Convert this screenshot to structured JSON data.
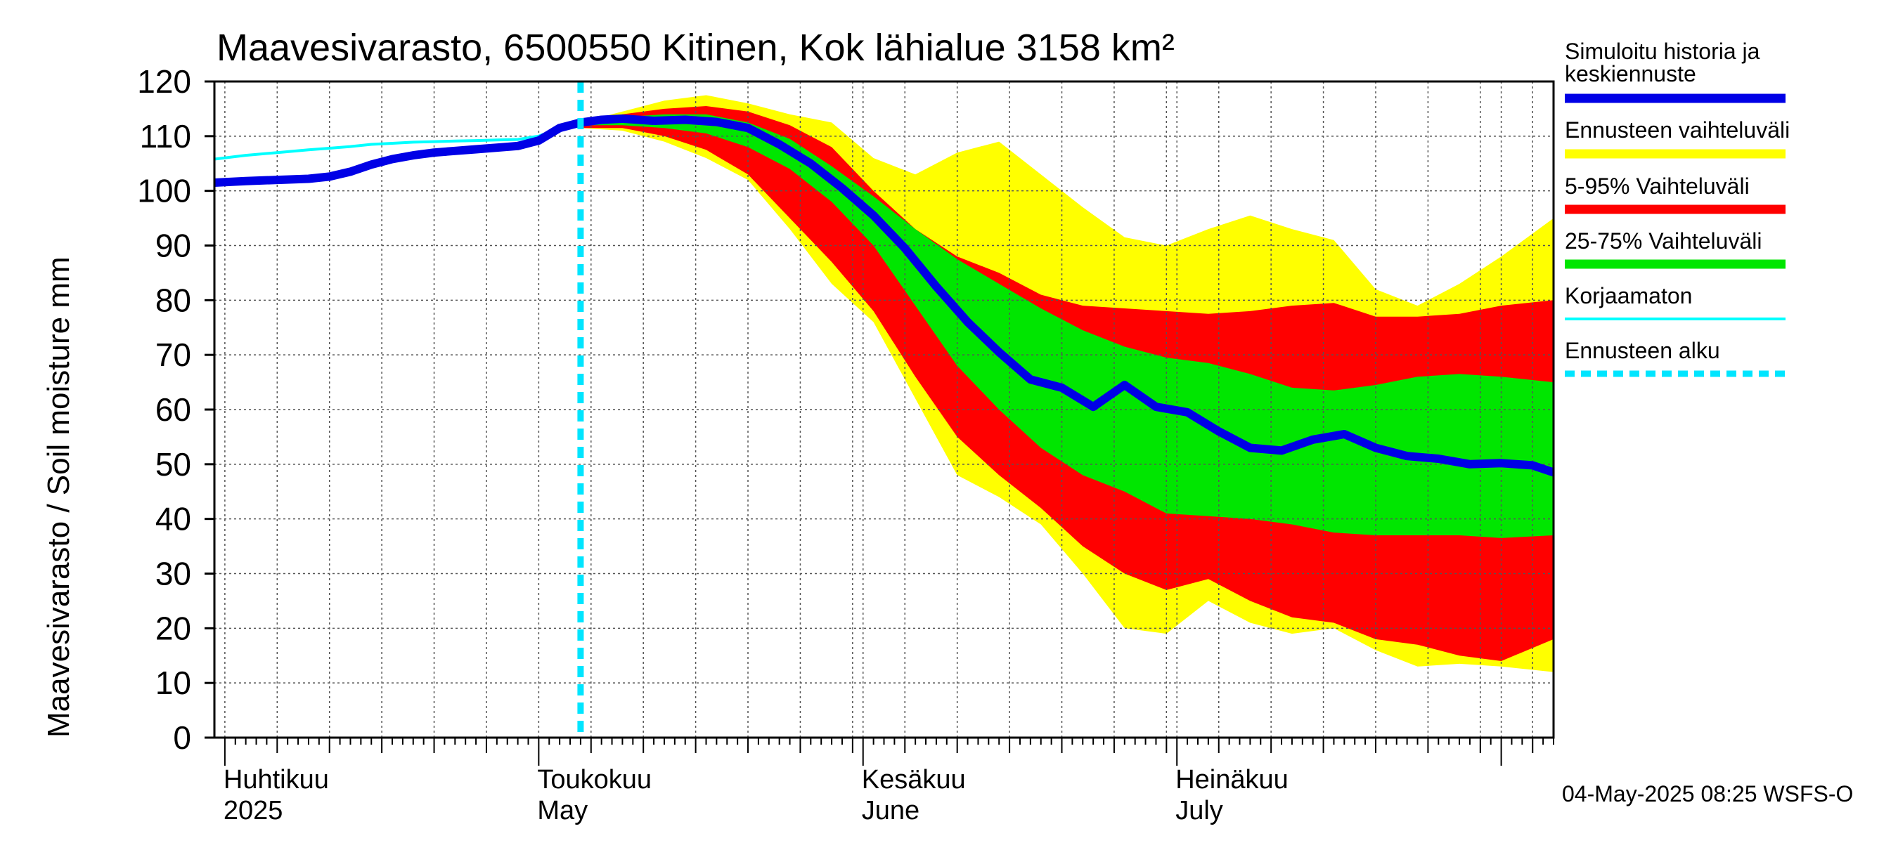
{
  "chart_data": {
    "type": "area",
    "title": "Maavesivarasto, 6500550 Kitinen, Kok lähialue 3158 km²",
    "ylabel": "Maavesivarasto / Soil moisture   mm",
    "ylim": [
      0,
      120
    ],
    "yticks": [
      0,
      10,
      20,
      30,
      40,
      50,
      60,
      70,
      80,
      90,
      100,
      110,
      120
    ],
    "x_unit": "day of year 2025",
    "xlim": [
      89,
      217
    ],
    "forecast_start": 124,
    "month_labels": [
      {
        "fi": "Huhtikuu",
        "en": "2025",
        "day": 90
      },
      {
        "fi": "Toukokuu",
        "en": "May",
        "day": 120
      },
      {
        "fi": "Kesäkuu",
        "en": "June",
        "day": 151
      },
      {
        "fi": "Heinäkuu",
        "en": "July",
        "day": 181
      }
    ],
    "month_boundaries": [
      90,
      120,
      151,
      181,
      212
    ],
    "minor_tick_step_days": 5,
    "series": {
      "simulated_history_and_median": {
        "x": [
          89,
          92,
          95,
          98,
          100,
          102,
          104,
          106,
          108,
          110,
          112,
          114,
          116,
          118,
          120,
          122,
          124,
          126,
          128,
          131,
          134,
          137,
          140,
          143,
          146,
          149,
          152,
          155,
          158,
          161,
          164,
          167,
          170,
          173,
          176,
          179,
          182,
          185,
          188,
          191,
          194,
          197,
          200,
          203,
          206,
          209,
          212,
          215,
          217
        ],
        "y": [
          101.5,
          101.8,
          102.0,
          102.2,
          102.6,
          103.5,
          104.8,
          105.8,
          106.5,
          107.0,
          107.3,
          107.6,
          107.9,
          108.2,
          109.2,
          111.5,
          112.5,
          113.0,
          113.2,
          112.8,
          113.0,
          112.6,
          111.5,
          108.5,
          105.0,
          100.5,
          95.5,
          89.5,
          82.5,
          76.0,
          70.5,
          65.5,
          64.0,
          60.5,
          64.5,
          60.5,
          59.5,
          56.0,
          53.0,
          52.5,
          54.5,
          55.5,
          53.0,
          51.5,
          51.0,
          50.0,
          50.2,
          49.8,
          48.5
        ]
      },
      "uncorrected": {
        "x": [
          89,
          92,
          95,
          98,
          100,
          102,
          104,
          106,
          108,
          110,
          112,
          114,
          116,
          118,
          120,
          122,
          124
        ],
        "y": [
          105.8,
          106.5,
          107.0,
          107.5,
          107.8,
          108.1,
          108.5,
          108.7,
          108.9,
          109.0,
          109.1,
          109.2,
          109.3,
          109.4,
          110.0,
          111.5,
          112.5
        ]
      },
      "ensemble_range": {
        "x": [
          124,
          128,
          132,
          136,
          140,
          144,
          148,
          152,
          156,
          160,
          164,
          168,
          172,
          176,
          180,
          184,
          188,
          192,
          196,
          200,
          204,
          208,
          212,
          217
        ],
        "upper": [
          112.5,
          114.5,
          116.5,
          117.5,
          116.0,
          114.0,
          112.5,
          106.0,
          103.0,
          107.0,
          109.0,
          103.0,
          97.0,
          91.5,
          90.0,
          93.0,
          95.5,
          93.0,
          91.0,
          82.0,
          79.0,
          83.0,
          88.0,
          95.0
        ],
        "lower": [
          111.5,
          111.0,
          109.0,
          106.0,
          102.0,
          93.0,
          83.0,
          76.0,
          62.0,
          48.0,
          44.0,
          39.0,
          30.0,
          20.0,
          19.0,
          25.0,
          21.0,
          19.0,
          20.0,
          16.0,
          13.0,
          13.5,
          13.0,
          12.0
        ]
      },
      "p5_p95": {
        "x": [
          124,
          128,
          132,
          136,
          140,
          144,
          148,
          152,
          156,
          160,
          164,
          168,
          172,
          176,
          180,
          184,
          188,
          192,
          196,
          200,
          204,
          208,
          212,
          217
        ],
        "upper": [
          112.5,
          114.0,
          115.0,
          115.5,
          114.5,
          112.0,
          108.0,
          100.0,
          93.0,
          88.0,
          85.0,
          81.0,
          79.0,
          78.5,
          78.0,
          77.5,
          78.0,
          79.0,
          79.5,
          77.0,
          77.0,
          77.5,
          79.0,
          80.0
        ],
        "lower": [
          111.5,
          111.5,
          110.0,
          107.5,
          103.0,
          95.0,
          87.0,
          78.0,
          66.0,
          55.0,
          48.0,
          42.0,
          35.0,
          30.0,
          27.0,
          29.0,
          25.0,
          22.0,
          21.0,
          18.0,
          17.0,
          15.0,
          14.0,
          18.0
        ]
      },
      "p25_p75": {
        "x": [
          124,
          128,
          132,
          136,
          140,
          144,
          148,
          152,
          156,
          160,
          164,
          168,
          172,
          176,
          180,
          184,
          188,
          192,
          196,
          200,
          204,
          208,
          212,
          217
        ],
        "upper": [
          112.5,
          113.5,
          114.0,
          114.0,
          112.5,
          109.5,
          104.5,
          99.0,
          93.0,
          87.5,
          83.0,
          78.5,
          74.5,
          71.5,
          69.5,
          68.5,
          66.5,
          64.0,
          63.5,
          64.5,
          66.0,
          66.5,
          66.0,
          65.0
        ],
        "lower": [
          112.0,
          112.0,
          111.5,
          110.5,
          108.0,
          104.0,
          98.0,
          90.0,
          79.0,
          68.0,
          60.0,
          53.0,
          48.0,
          45.0,
          41.0,
          40.5,
          40.0,
          39.0,
          37.5,
          37.0,
          37.0,
          37.0,
          36.5,
          37.0
        ]
      }
    },
    "colors": {
      "median": "#0000e6",
      "ensemble_range": "#ffff00",
      "p5_p95": "#ff0000",
      "p25_p75": "#00e600",
      "uncorrected": "#00ffff",
      "forecast_start": "#00e5ff",
      "grid": "#555555"
    },
    "legend": [
      {
        "key": "median",
        "label_line1": "Simuloitu historia ja",
        "label_line2": "keskiennuste",
        "style": "thick-line"
      },
      {
        "key": "ensemble_range",
        "label_line1": "Ennusteen vaihteluväli",
        "style": "thick-line"
      },
      {
        "key": "p5_p95",
        "label_line1": "5-95% Vaihteluväli",
        "style": "thick-line"
      },
      {
        "key": "p25_p75",
        "label_line1": "25-75% Vaihteluväli",
        "style": "thick-line"
      },
      {
        "key": "uncorrected",
        "label_line1": "Korjaamaton",
        "style": "thin-line"
      },
      {
        "key": "forecast_start",
        "label_line1": "Ennusteen alku",
        "style": "dashed-line"
      }
    ],
    "legend_position": "right",
    "footer": "04-May-2025 08:25 WSFS-O"
  }
}
